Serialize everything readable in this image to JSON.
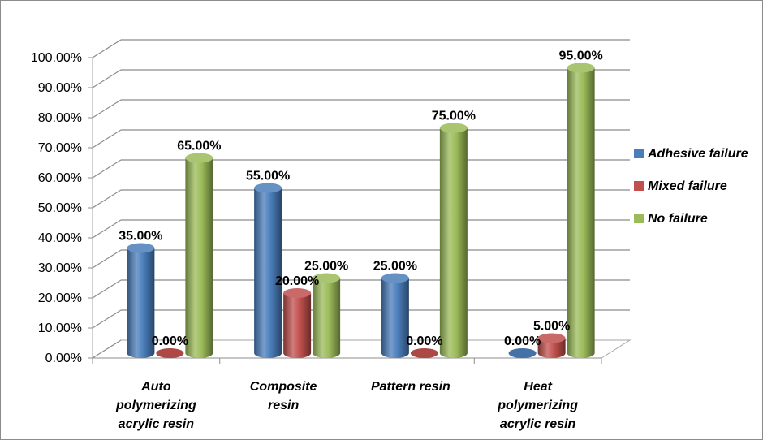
{
  "chart_data": {
    "type": "bar",
    "title": "",
    "xlabel": "",
    "ylabel": "",
    "ylim": [
      0,
      1
    ],
    "y_ticks": [
      "0.00%",
      "10.00%",
      "20.00%",
      "30.00%",
      "40.00%",
      "50.00%",
      "60.00%",
      "70.00%",
      "80.00%",
      "90.00%",
      "100.00%"
    ],
    "categories": [
      [
        "Auto",
        "polymerizing",
        "acrylic resin"
      ],
      [
        "Composite",
        "resin"
      ],
      [
        "Pattern resin"
      ],
      [
        "Heat",
        "polymerizing",
        "acrylic resin"
      ]
    ],
    "series": [
      {
        "name": "Adhesive failure",
        "color": "#4a7ebb",
        "values": [
          0.35,
          0.55,
          0.25,
          0.0
        ],
        "labels": [
          "35.00%",
          "55.00%",
          "25.00%",
          "0.00%"
        ]
      },
      {
        "name": "Mixed failure",
        "color": "#c0504d",
        "values": [
          0.0,
          0.2,
          0.0,
          0.05
        ],
        "labels": [
          "0.00%",
          "20.00%",
          "0.00%",
          "5.00%"
        ]
      },
      {
        "name": "No failure",
        "color": "#9bbb59",
        "values": [
          0.65,
          0.25,
          0.75,
          0.95
        ],
        "labels": [
          "65.00%",
          "25.00%",
          "75.00%",
          "95.00%"
        ]
      }
    ],
    "grid": true,
    "legend_position": "right",
    "style": "3d-cylinder"
  }
}
